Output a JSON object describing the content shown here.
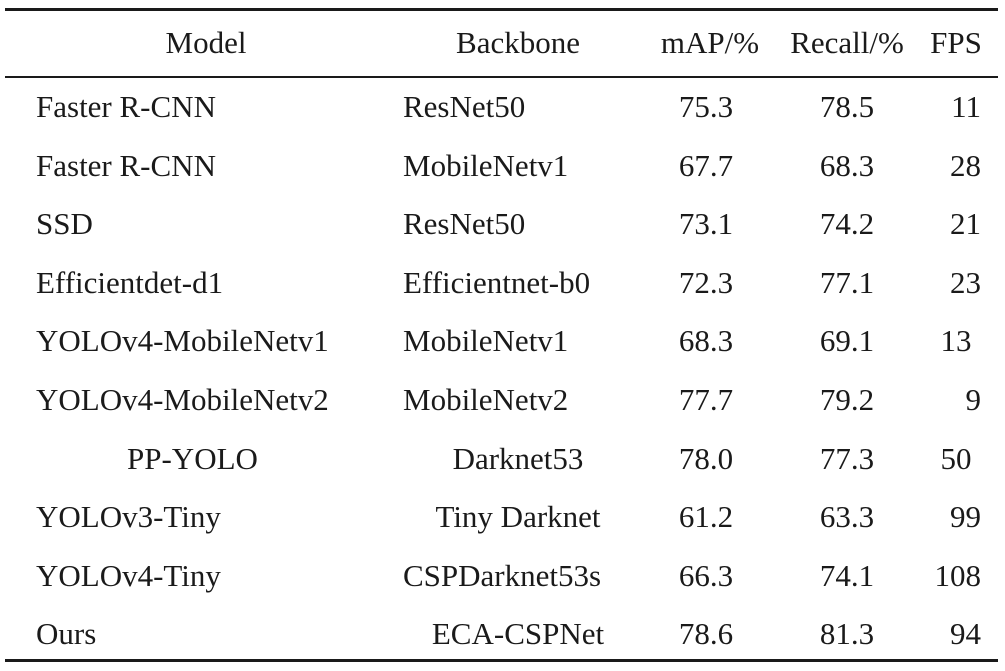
{
  "table": {
    "headers": {
      "model": "Model",
      "backbone": "Backbone",
      "map": "mAP/%",
      "recall": "Recall/%",
      "fps": "FPS"
    },
    "rows": [
      {
        "model": "Faster R-CNN",
        "backbone": "ResNet50",
        "map": "75.3",
        "recall": "78.5",
        "fps": "11"
      },
      {
        "model": "Faster R-CNN",
        "backbone": "MobileNetv1",
        "map": "67.7",
        "recall": "68.3",
        "fps": "28"
      },
      {
        "model": "SSD",
        "backbone": "ResNet50",
        "map": "73.1",
        "recall": "74.2",
        "fps": "21"
      },
      {
        "model": "Efficientdet-d1",
        "backbone": "Efficientnet-b0",
        "map": "72.3",
        "recall": "77.1",
        "fps": "23"
      },
      {
        "model": "YOLOv4-MobileNetv1",
        "backbone": "MobileNetv1",
        "map": "68.3",
        "recall": "69.1",
        "fps": "13"
      },
      {
        "model": "YOLOv4-MobileNetv2",
        "backbone": "MobileNetv2",
        "map": "77.7",
        "recall": "79.2",
        "fps": "9"
      },
      {
        "model": "PP-YOLO",
        "backbone": "Darknet53",
        "map": "78.0",
        "recall": "77.3",
        "fps": "50"
      },
      {
        "model": "YOLOv3-Tiny",
        "backbone": "Tiny Darknet",
        "map": "61.2",
        "recall": "63.3",
        "fps": "99"
      },
      {
        "model": "YOLOv4-Tiny",
        "backbone": "CSPDarknet53s",
        "map": "66.3",
        "recall": "74.1",
        "fps": "108"
      },
      {
        "model": "Ours",
        "backbone": "ECA-CSPNet",
        "map": "78.6",
        "recall": "81.3",
        "fps": "94"
      }
    ]
  }
}
